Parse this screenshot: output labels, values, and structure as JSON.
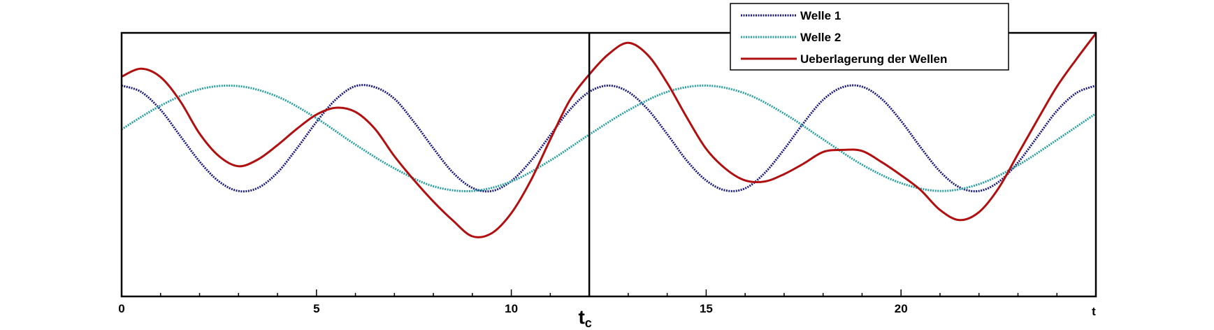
{
  "chart_data": {
    "type": "line",
    "title": "",
    "xlabel": "t",
    "ylabel": "",
    "xlim": [
      0,
      25
    ],
    "ylim": [
      -3,
      2
    ],
    "x_ticks": [
      {
        "value": 0,
        "label": "0"
      },
      {
        "value": 5,
        "label": "5"
      },
      {
        "value": 10,
        "label": "10"
      },
      {
        "value": 15,
        "label": "15"
      },
      {
        "value": 20,
        "label": "20"
      }
    ],
    "x_axis_end_label": "t",
    "x_minor_step": 1,
    "marker_line": {
      "x": 12,
      "label": "t",
      "subscript": "c"
    },
    "legend": {
      "position": "top-right"
    },
    "grid": false,
    "series": [
      {
        "name": "Welle 1",
        "style": "dotted",
        "color": "#1a1a80",
        "x": [
          0,
          0.5,
          1,
          1.5,
          2,
          2.5,
          3,
          3.5,
          4,
          4.5,
          5,
          5.5,
          6,
          6.5,
          7,
          7.5,
          8,
          8.5,
          9,
          9.5,
          10,
          10.5,
          11,
          11.5,
          12,
          12.5,
          13,
          13.5,
          14,
          14.5,
          15,
          15.5,
          16,
          16.5,
          17,
          17.5,
          18,
          18.5,
          19,
          19.5,
          20,
          20.5,
          21,
          21.5,
          22,
          22.5,
          23,
          23.5,
          24,
          24.5,
          25
        ],
        "y": [
          1.0,
          0.88,
          0.54,
          0.05,
          -0.44,
          -0.82,
          -1.0,
          -0.94,
          -0.65,
          -0.19,
          0.31,
          0.74,
          0.99,
          0.97,
          0.75,
          0.31,
          -0.19,
          -0.65,
          -0.94,
          -1.0,
          -0.81,
          -0.43,
          0.06,
          0.54,
          0.88,
          1.0,
          0.88,
          0.55,
          0.08,
          -0.42,
          -0.8,
          -0.99,
          -0.95,
          -0.66,
          -0.21,
          0.29,
          0.73,
          0.97,
          0.98,
          0.75,
          0.33,
          -0.17,
          -0.63,
          -0.93,
          -1.0,
          -0.83,
          -0.46,
          0.03,
          0.52,
          0.86,
          1.0
        ]
      },
      {
        "name": "Welle 2",
        "style": "dotted",
        "color": "#2aa0a0",
        "x": [
          0,
          1,
          2,
          3,
          4,
          5,
          6,
          7,
          8,
          9,
          10,
          11,
          12,
          13,
          14,
          15,
          16,
          17,
          18,
          19,
          20,
          21,
          22,
          23,
          24,
          25
        ],
        "y": [
          0.17,
          0.62,
          0.93,
          0.99,
          0.79,
          0.38,
          -0.12,
          -0.57,
          -0.91,
          -1.0,
          -0.82,
          -0.42,
          0.07,
          0.53,
          0.88,
          1.0,
          0.85,
          0.47,
          -0.02,
          -0.5,
          -0.85,
          -1.0,
          -0.87,
          -0.51,
          -0.03,
          0.47
        ]
      },
      {
        "name": "Ueberlagerung der Wellen",
        "style": "solid",
        "color": "#b01010",
        "x": [
          0,
          0.5,
          1,
          1.5,
          2,
          2.5,
          3,
          3.5,
          4,
          4.5,
          5,
          5.5,
          6,
          6.5,
          7,
          7.5,
          8,
          8.5,
          9,
          9.5,
          10,
          10.5,
          11,
          11.5,
          12,
          12.5,
          13,
          13.5,
          14,
          14.5,
          15,
          15.5,
          16,
          16.5,
          17,
          17.5,
          18,
          18.5,
          19,
          19.5,
          20,
          20.5,
          21,
          21.5,
          22,
          22.5,
          23,
          23.5,
          24,
          24.5,
          25
        ],
        "y": [
          1.17,
          1.32,
          1.16,
          0.71,
          0.09,
          -0.34,
          -0.53,
          -0.4,
          -0.13,
          0.18,
          0.45,
          0.58,
          0.5,
          0.18,
          -0.34,
          -0.79,
          -1.2,
          -1.56,
          -1.86,
          -1.8,
          -1.42,
          -0.8,
          -0.02,
          0.72,
          1.21,
          1.6,
          1.81,
          1.58,
          1.05,
          0.4,
          -0.2,
          -0.58,
          -0.8,
          -0.82,
          -0.68,
          -0.48,
          -0.26,
          -0.22,
          -0.24,
          -0.45,
          -0.7,
          -0.98,
          -1.36,
          -1.55,
          -1.4,
          -0.95,
          -0.3,
          0.35,
          0.98,
          1.5,
          1.99
        ]
      }
    ]
  }
}
